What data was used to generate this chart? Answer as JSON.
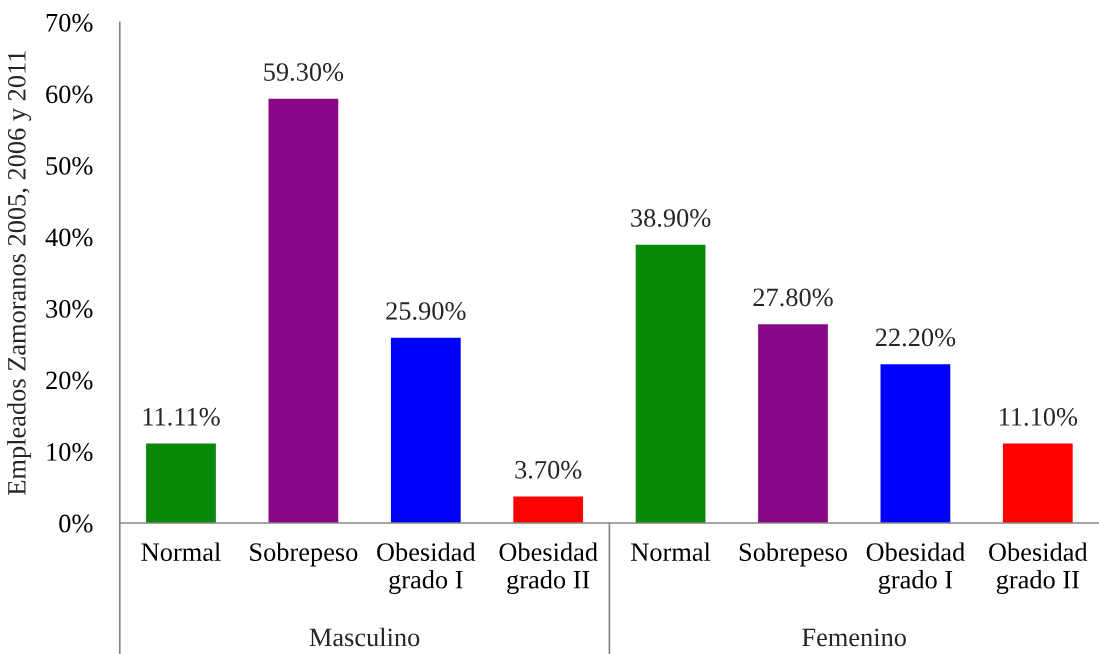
{
  "chart_data": {
    "type": "bar",
    "ylabel": "Empleados Zamoranos 2005, 2006 y 2011",
    "categories": [
      "Normal",
      "Sobrepeso",
      "Obesidad\ngrado I",
      "Obesidad\ngrado II",
      "Normal",
      "Sobrepeso",
      "Obesidad\ngrado I",
      "Obesidad\ngrado II"
    ],
    "values": [
      11.11,
      59.3,
      25.9,
      3.7,
      38.9,
      27.8,
      22.2,
      11.1
    ],
    "colors": [
      "#0a880a",
      "#880888",
      "#0000ff",
      "#ff0000",
      "#0a880a",
      "#880888",
      "#0000ff",
      "#ff0000"
    ],
    "value_labels": [
      "11.11%",
      "59.30%",
      "25.90%",
      "3.70%",
      "38.90%",
      "27.80%",
      "22.20%",
      "11.10%"
    ],
    "ylim": [
      0,
      70
    ],
    "yticks": [
      {
        "value": 0,
        "label": "0%"
      },
      {
        "value": 10,
        "label": "10%"
      },
      {
        "value": 20,
        "label": "20%"
      },
      {
        "value": 30,
        "label": "30%"
      },
      {
        "value": 40,
        "label": "40%"
      },
      {
        "value": 50,
        "label": "50%"
      },
      {
        "value": 60,
        "label": "60%"
      },
      {
        "value": 70,
        "label": "70%"
      }
    ],
    "annotations": [
      "Masculino",
      "Femenino"
    ]
  }
}
